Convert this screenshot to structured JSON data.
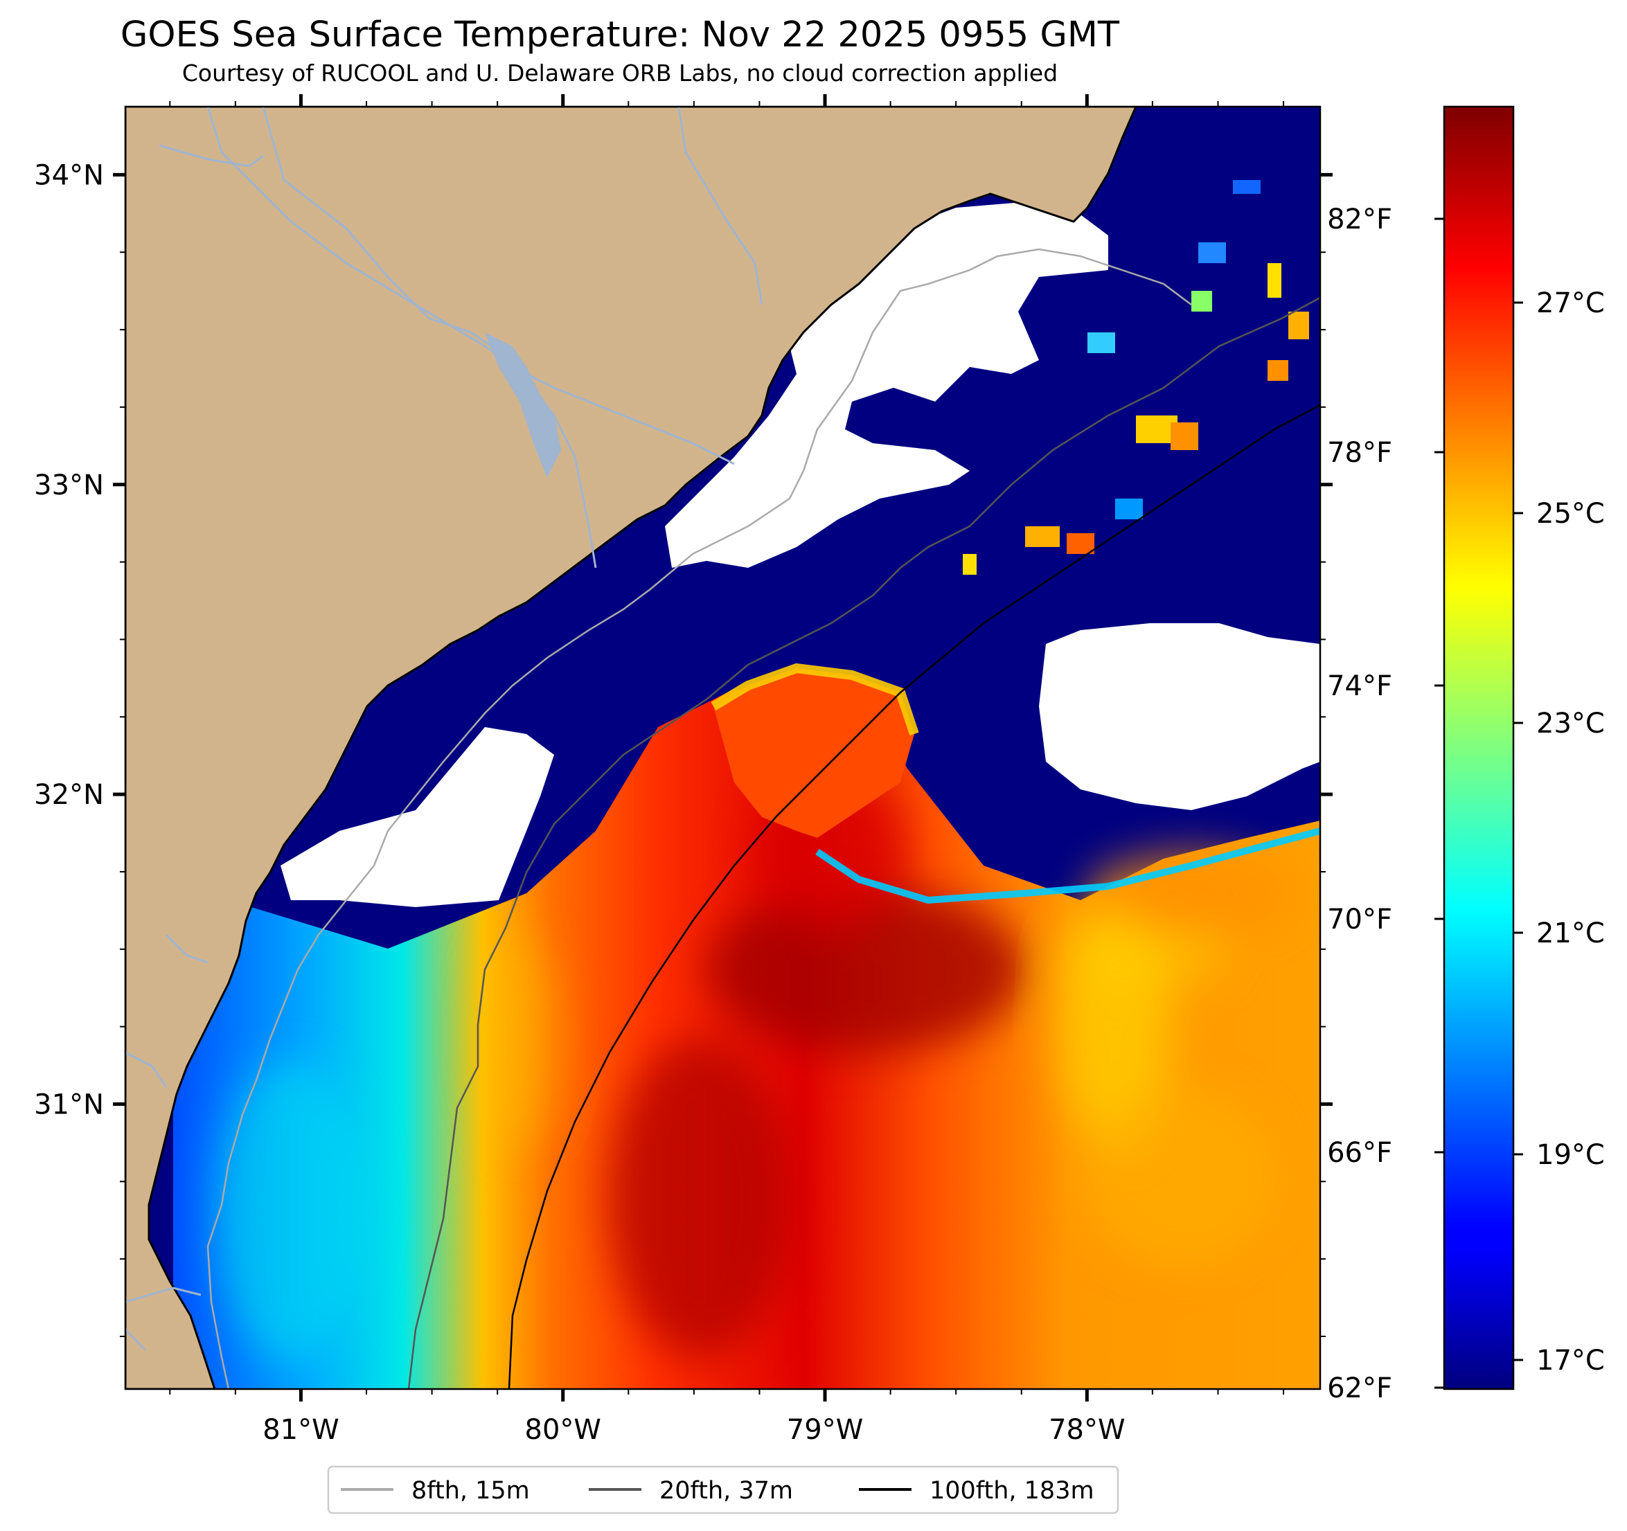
{
  "header": {
    "title": "GOES Sea Surface Temperature: Nov 22 2025 0955 GMT",
    "subtitle": "Courtesy of RUCOOL and U. Delaware ORB Labs, no cloud correction applied"
  },
  "map": {
    "lat_ticks": [
      {
        "value": 34,
        "label": "34°N"
      },
      {
        "value": 33,
        "label": "33°N"
      },
      {
        "value": 32,
        "label": "32°N"
      },
      {
        "value": 31,
        "label": "31°N"
      }
    ],
    "lon_ticks": [
      {
        "value": -81,
        "label": "81°W"
      },
      {
        "value": -80,
        "label": "80°W"
      },
      {
        "value": -79,
        "label": "79°W"
      },
      {
        "value": -78,
        "label": "78°W"
      }
    ],
    "lat_range": [
      30.08,
      34.22
    ],
    "lon_range": [
      -81.67,
      -77.11
    ],
    "land_color": "#d2b48c",
    "cloud_mask_color": "#ffffff",
    "river_color": "#9fb5d0"
  },
  "colorbar": {
    "colormap": "jet",
    "fahrenheit_ticks": [
      "82°F",
      "78°F",
      "74°F",
      "70°F",
      "66°F",
      "62°F"
    ],
    "celsius_ticks": [
      "27°C",
      "25°C",
      "23°C",
      "21°C",
      "19°C",
      "17°C"
    ]
  },
  "legend": {
    "items": [
      {
        "label": "8fth, 15m",
        "color": "#aaaaaa"
      },
      {
        "label": "20fth, 37m",
        "color": "#555555"
      },
      {
        "label": "100fth, 183m",
        "color": "#000000"
      }
    ]
  }
}
